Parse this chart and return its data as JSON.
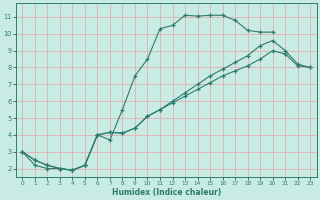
{
  "xlabel": "Humidex (Indice chaleur)",
  "bg_color": "#c8ece4",
  "grid_color": "#e0b8b8",
  "line_color": "#2e7b6e",
  "xlim": [
    -0.5,
    23.5
  ],
  "ylim": [
    1.5,
    11.8
  ],
  "xticks": [
    0,
    1,
    2,
    3,
    4,
    5,
    6,
    7,
    8,
    9,
    10,
    11,
    12,
    13,
    14,
    15,
    16,
    17,
    18,
    19,
    20,
    21,
    22,
    23
  ],
  "yticks": [
    2,
    3,
    4,
    5,
    6,
    7,
    8,
    9,
    10,
    11
  ],
  "line1_x": [
    0,
    1,
    2,
    3,
    4,
    5,
    6,
    7,
    8,
    9,
    10,
    11,
    12,
    13,
    14,
    15,
    16,
    17,
    18,
    19,
    20
  ],
  "line1_y": [
    3.0,
    2.2,
    2.0,
    2.0,
    1.9,
    2.2,
    4.0,
    3.7,
    5.5,
    7.5,
    8.5,
    10.3,
    10.5,
    11.1,
    11.05,
    11.1,
    11.1,
    10.8,
    10.2,
    10.1,
    10.1
  ],
  "line2_x": [
    0,
    1,
    2,
    3,
    4,
    5,
    6,
    7,
    8,
    9,
    10,
    11,
    12,
    13,
    14,
    15,
    16,
    17,
    18,
    19,
    20,
    21,
    22,
    23
  ],
  "line2_y": [
    3.0,
    2.5,
    2.2,
    2.0,
    1.9,
    2.2,
    4.0,
    4.15,
    4.1,
    4.4,
    5.1,
    5.5,
    6.0,
    6.5,
    7.0,
    7.5,
    7.9,
    8.3,
    8.7,
    9.3,
    9.6,
    9.0,
    8.2,
    8.0
  ],
  "line3_x": [
    0,
    1,
    2,
    3,
    4,
    5,
    6,
    7,
    8,
    9,
    10,
    11,
    12,
    13,
    14,
    15,
    16,
    17,
    18,
    19,
    20,
    21,
    22,
    23
  ],
  "line3_y": [
    3.0,
    2.5,
    2.2,
    2.0,
    1.9,
    2.2,
    4.0,
    4.15,
    4.1,
    4.4,
    5.1,
    5.5,
    5.9,
    6.3,
    6.7,
    7.1,
    7.5,
    7.8,
    8.1,
    8.5,
    9.0,
    8.8,
    8.1,
    8.0
  ]
}
